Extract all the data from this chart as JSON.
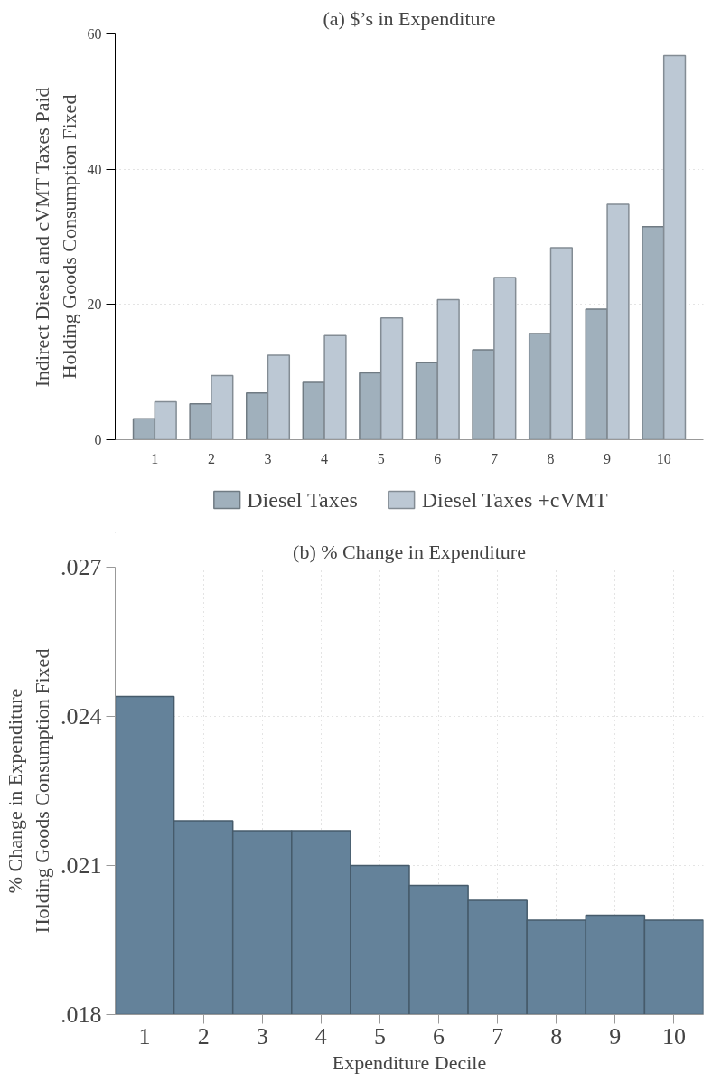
{
  "chart_data": [
    {
      "type": "bar",
      "title": "(a) $’s in Expenditure",
      "ylabel": "Indirect Diesel and cVMT Taxes Paid\nHolding Goods Consumption Fixed",
      "categories": [
        "1",
        "2",
        "3",
        "4",
        "5",
        "6",
        "7",
        "8",
        "9",
        "10"
      ],
      "series": [
        {
          "name": "Diesel Taxes",
          "color": "#a0b0bc",
          "values": [
            3.1,
            5.3,
            6.9,
            8.5,
            9.9,
            11.4,
            13.3,
            15.7,
            19.3,
            31.5
          ]
        },
        {
          "name": "Diesel Taxes +cVMT",
          "color": "#bcc8d4",
          "values": [
            5.6,
            9.5,
            12.5,
            15.4,
            18.0,
            20.7,
            24.0,
            28.4,
            34.8,
            56.8
          ]
        }
      ],
      "ylim": [
        0,
        60
      ],
      "yticks": [
        0,
        20,
        40,
        60
      ],
      "grid": "y",
      "legend": "bottom"
    },
    {
      "type": "bar",
      "title": "(b) % Change in Expenditure",
      "ylabel": "% Change in Expenditure\nHolding Goods Consumption Fixed",
      "xlabel": "Expenditure Decile",
      "categories": [
        "1",
        "2",
        "3",
        "4",
        "5",
        "6",
        "7",
        "8",
        "9",
        "10"
      ],
      "series": [
        {
          "color": "#64829a",
          "values": [
            0.0244,
            0.0219,
            0.0217,
            0.0217,
            0.021,
            0.0206,
            0.0203,
            0.0199,
            0.02,
            0.0199
          ]
        }
      ],
      "ylim": [
        0.018,
        0.027
      ],
      "yticks": [
        {
          "value": 0.018,
          "label": ".018"
        },
        {
          "value": 0.021,
          "label": ".021"
        },
        {
          "value": 0.024,
          "label": ".024"
        },
        {
          "value": 0.027,
          "label": ".027"
        }
      ],
      "grid": true
    }
  ]
}
